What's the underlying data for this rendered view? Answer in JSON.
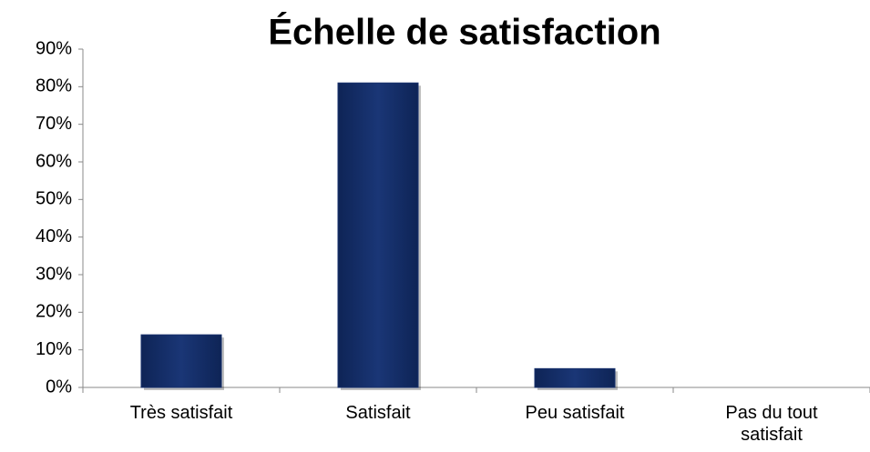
{
  "chart_data": {
    "type": "bar",
    "title": "Échelle de satisfaction",
    "categories": [
      "Très satisfait",
      "Satisfait",
      "Peu satisfait",
      "Pas du tout satisfait"
    ],
    "values": [
      14,
      81,
      5,
      0
    ],
    "color": "#17306c",
    "ylim": [
      0,
      90
    ],
    "yticks": [
      {
        "value": 0,
        "label": "0%"
      },
      {
        "value": 10,
        "label": "10%"
      },
      {
        "value": 20,
        "label": "20%"
      },
      {
        "value": 30,
        "label": "30%"
      },
      {
        "value": 40,
        "label": "40%"
      },
      {
        "value": 50,
        "label": "50%"
      },
      {
        "value": 60,
        "label": "60%"
      },
      {
        "value": 70,
        "label": "70%"
      },
      {
        "value": 80,
        "label": "80%"
      },
      {
        "value": 90,
        "label": "90%"
      }
    ],
    "grid": false
  }
}
